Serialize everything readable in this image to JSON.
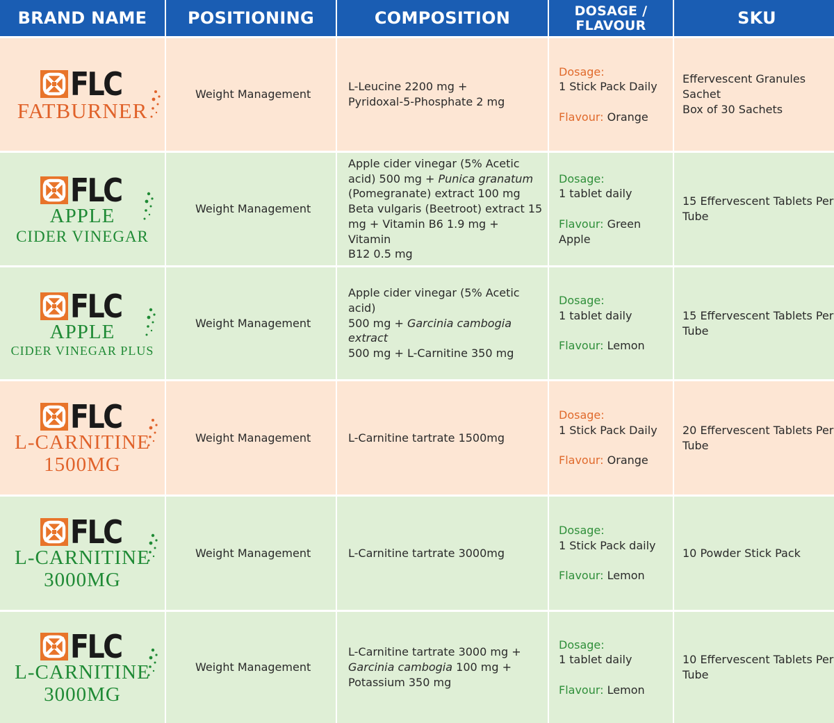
{
  "headers": {
    "brand": "BRAND NAME",
    "positioning": "POSITIONING",
    "composition": "COMPOSITION",
    "dosage_line1": "DOSAGE /",
    "dosage_line2": "FLAVOUR",
    "sku": "SKU"
  },
  "labels": {
    "dosage": "Dosage:",
    "flavour": "Flavour:"
  },
  "colors": {
    "header_blue": "#1a5db3",
    "orange_row": "#fde6d4",
    "green_row": "#dfefd6",
    "orange_accent": "#e0622a",
    "green_accent": "#1f8a35"
  },
  "rows": [
    {
      "theme": "orange",
      "logo": {
        "mark": "FLC",
        "line1": "FATBURNER",
        "line2": ""
      },
      "positioning": "Weight Management",
      "composition": [
        "L-Leucine 2200 mg +",
        "Pyridoxal-5-Phosphate 2 mg"
      ],
      "dosage": "1 Stick Pack Daily",
      "flavour": "Orange",
      "sku": [
        "Effervescent Granules",
        "Sachet",
        "Box of 30 Sachets"
      ]
    },
    {
      "theme": "green",
      "logo": {
        "mark": "FLC",
        "line1": "APPLE",
        "line2": "CIDER VINEGAR"
      },
      "positioning": "Weight Management",
      "composition_parts": {
        "l1": "Apple cider vinegar (5% Acetic",
        "l2a": "acid) 500 mg + ",
        "l2b": "Punica granatum",
        "l3": "(Pomegranate) extract 100 mg",
        "l4": "Beta vulgaris (Beetroot) extract 15",
        "l5": "mg + Vitamin B6 1.9 mg + Vitamin",
        "l6": "B12 0.5 mg"
      },
      "dosage": "1 tablet daily",
      "flavour": "Green Apple",
      "sku": [
        "15 Effervescent Tablets Per",
        "Tube"
      ]
    },
    {
      "theme": "green",
      "logo": {
        "mark": "FLC",
        "line1": "APPLE",
        "line2": "CIDER VINEGAR PLUS"
      },
      "positioning": "Weight Management",
      "composition_parts": {
        "l1": "Apple cider vinegar (5% Acetic acid)",
        "l2a": "500 mg + ",
        "l2b": "Garcinia cambogia extract",
        "l3": "500 mg + L-Carnitine 350 mg"
      },
      "dosage": "1 tablet daily",
      "flavour": "Lemon",
      "sku": [
        "15 Effervescent Tablets Per",
        "Tube"
      ]
    },
    {
      "theme": "orange",
      "logo": {
        "mark": "FLC",
        "line1": "L-CARNITINE",
        "line2": "1500MG"
      },
      "positioning": "Weight Management",
      "composition": [
        "L-Carnitine tartrate 1500mg"
      ],
      "dosage": "1 Stick Pack Daily",
      "flavour": "Orange",
      "sku": [
        "20 Effervescent Tablets Per",
        "Tube"
      ]
    },
    {
      "theme": "green",
      "logo": {
        "mark": "FLC",
        "line1": "L-CARNITINE",
        "line2": "3000MG"
      },
      "positioning": "Weight Management",
      "composition": [
        "L-Carnitine tartrate 3000mg"
      ],
      "dosage": "1 Stick Pack daily",
      "flavour": "Lemon",
      "sku": [
        "10 Powder Stick Pack"
      ]
    },
    {
      "theme": "green",
      "logo": {
        "mark": "FLC",
        "line1": "L-CARNITINE",
        "line2": "3000MG"
      },
      "positioning": "Weight Management",
      "composition_parts": {
        "l1": "L-Carnitine tartrate 3000 mg +",
        "l2b": "Garcinia cambogia",
        "l2c": " 100 mg +",
        "l3": "Potassium 350 mg"
      },
      "dosage": "1 tablet daily",
      "flavour": "Lemon",
      "sku": [
        "10 Effervescent Tablets Per",
        "Tube"
      ]
    }
  ]
}
